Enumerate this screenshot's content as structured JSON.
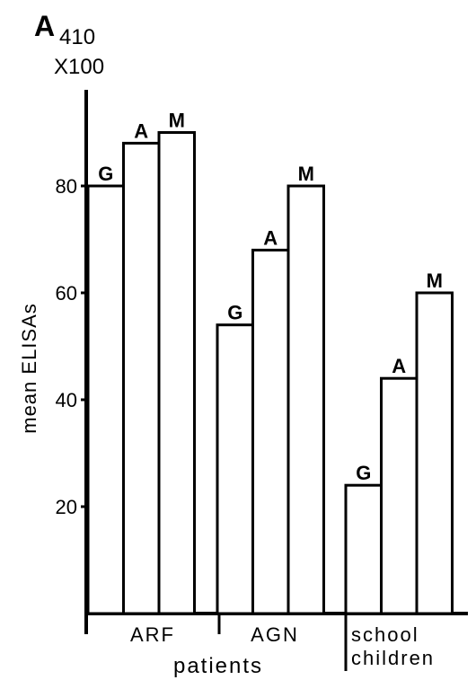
{
  "chart_data": {
    "type": "bar",
    "title": "A",
    "title_subscript": "410",
    "title_multiplier": "X100",
    "ylabel": "mean ELISAs",
    "xlabel": "",
    "ylim": [
      0,
      100
    ],
    "yticks": [
      {
        "label": "20",
        "value": 20
      },
      {
        "label": "40",
        "value": 40
      },
      {
        "label": "60",
        "value": 60
      },
      {
        "label": "80",
        "value": 80
      }
    ],
    "groups": [
      {
        "name": "ARF",
        "bars": [
          {
            "label": "G",
            "value": 80
          },
          {
            "label": "A",
            "value": 88
          },
          {
            "label": "M",
            "value": 90
          }
        ]
      },
      {
        "name": "AGN",
        "bars": [
          {
            "label": "G",
            "value": 54
          },
          {
            "label": "A",
            "value": 68
          },
          {
            "label": "M",
            "value": 80
          }
        ]
      },
      {
        "name_lines": [
          "school",
          "children"
        ],
        "bars": [
          {
            "label": "G",
            "value": 24
          },
          {
            "label": "A",
            "value": 44
          },
          {
            "label": "M",
            "value": 60
          }
        ]
      }
    ],
    "category_group_label": "patients",
    "grid": false,
    "legend": "none",
    "colors": {
      "fill": "#ffffff",
      "stroke": "#000000"
    }
  }
}
